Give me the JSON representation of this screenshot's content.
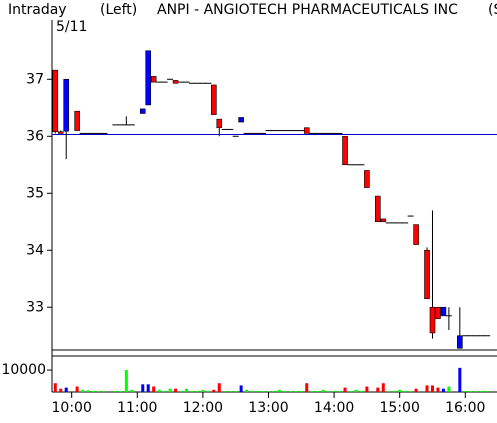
{
  "chart_data": {
    "type": "candlestick",
    "period": "Intraday",
    "axis_side": "(Left)",
    "title": "ANPI - ANGIOTECH PHARMACEUTICALS INC",
    "title_suffix": "(S",
    "date": "5/11",
    "x": [
      "09:45",
      "09:50",
      "09:55",
      "10:05",
      "10:10",
      "10:15",
      "10:20",
      "10:25",
      "10:30",
      "10:40",
      "10:45",
      "10:50",
      "10:55",
      "11:05",
      "11:10",
      "11:15",
      "11:20",
      "11:25",
      "11:30",
      "11:35",
      "11:40",
      "11:45",
      "11:50",
      "11:55",
      "12:00",
      "12:05",
      "12:10",
      "12:15",
      "12:20",
      "12:25",
      "12:30",
      "12:35",
      "12:40",
      "12:45",
      "12:50",
      "12:55",
      "13:00",
      "13:05",
      "13:10",
      "13:15",
      "13:20",
      "13:25",
      "13:30",
      "13:35",
      "13:40",
      "13:45",
      "13:50",
      "13:55",
      "14:00",
      "14:05",
      "14:10",
      "14:15",
      "14:20",
      "14:25",
      "14:30",
      "14:40",
      "14:45",
      "14:50",
      "14:55",
      "15:00",
      "15:05",
      "15:10",
      "15:15",
      "15:25",
      "15:30",
      "15:35",
      "15:40",
      "15:45",
      "15:55",
      "16:00",
      "16:05",
      "16:10",
      "16:15",
      "16:20"
    ],
    "open": [
      37.16,
      36.08,
      36.09,
      36.44,
      36.05,
      36.05,
      36.05,
      36.05,
      36.05,
      36.2,
      36.2,
      36.2,
      36.2,
      36.4,
      36.55,
      37.05,
      36.95,
      36.95,
      37.0,
      36.98,
      36.95,
      36.95,
      36.93,
      36.93,
      36.93,
      36.93,
      36.9,
      36.3,
      36.12,
      36.12,
      36.0,
      36.25,
      36.05,
      36.05,
      36.05,
      36.05,
      36.1,
      36.1,
      36.1,
      36.1,
      36.1,
      36.1,
      36.1,
      36.15,
      36.05,
      36.05,
      36.05,
      36.05,
      36.05,
      36.05,
      36.0,
      35.5,
      35.5,
      35.5,
      35.4,
      34.95,
      34.55,
      34.48,
      34.48,
      34.48,
      34.48,
      34.6,
      34.45,
      34.0,
      33.0,
      33.0,
      32.85,
      32.85,
      32.28,
      32.5,
      32.5,
      32.5,
      32.5,
      32.5
    ],
    "high": [
      37.16,
      36.1,
      37.0,
      36.44,
      36.05,
      36.05,
      36.05,
      36.05,
      36.05,
      36.2,
      36.2,
      36.35,
      36.2,
      36.48,
      37.5,
      37.05,
      36.95,
      36.95,
      37.0,
      36.98,
      36.95,
      36.95,
      36.93,
      36.93,
      36.93,
      36.93,
      36.9,
      36.3,
      36.12,
      36.12,
      36.0,
      36.33,
      36.05,
      36.05,
      36.05,
      36.05,
      36.1,
      36.1,
      36.1,
      36.1,
      36.1,
      36.1,
      36.1,
      36.15,
      36.05,
      36.05,
      36.05,
      36.05,
      36.05,
      36.05,
      36.0,
      35.5,
      35.5,
      35.5,
      35.4,
      34.95,
      34.55,
      34.48,
      34.48,
      34.48,
      34.48,
      34.6,
      34.45,
      34.05,
      34.7,
      33.0,
      33.0,
      33.0,
      33.0,
      32.5,
      32.5,
      32.5,
      32.5,
      32.5
    ],
    "low": [
      36.05,
      36.05,
      35.6,
      36.1,
      36.05,
      36.05,
      36.05,
      36.05,
      36.05,
      36.2,
      36.2,
      36.2,
      36.2,
      36.4,
      36.55,
      36.95,
      36.95,
      36.95,
      37.0,
      36.93,
      36.95,
      36.95,
      36.93,
      36.93,
      36.93,
      36.93,
      36.38,
      36.0,
      36.12,
      36.12,
      36.0,
      36.25,
      36.05,
      36.05,
      36.05,
      36.05,
      36.1,
      36.1,
      36.1,
      36.1,
      36.1,
      36.1,
      36.1,
      36.05,
      36.05,
      36.05,
      36.05,
      36.05,
      36.05,
      36.05,
      35.5,
      35.5,
      35.5,
      35.5,
      35.1,
      34.5,
      34.5,
      34.48,
      34.48,
      34.48,
      34.48,
      34.6,
      34.1,
      33.15,
      32.45,
      32.8,
      32.85,
      32.6,
      32.28,
      32.5,
      32.5,
      32.5,
      32.5,
      32.5
    ],
    "close": [
      36.08,
      36.05,
      37.0,
      36.1,
      36.05,
      36.05,
      36.05,
      36.05,
      36.05,
      36.2,
      36.2,
      36.2,
      36.2,
      36.48,
      37.5,
      36.95,
      36.95,
      36.95,
      37.0,
      36.93,
      36.95,
      36.95,
      36.93,
      36.93,
      36.93,
      36.93,
      36.38,
      36.15,
      36.12,
      36.12,
      36.0,
      36.33,
      36.05,
      36.05,
      36.05,
      36.05,
      36.1,
      36.1,
      36.1,
      36.1,
      36.1,
      36.1,
      36.1,
      36.05,
      36.05,
      36.05,
      36.05,
      36.05,
      36.05,
      36.05,
      35.5,
      35.5,
      35.5,
      35.5,
      35.1,
      34.5,
      34.5,
      34.48,
      34.48,
      34.48,
      34.48,
      34.6,
      34.1,
      33.15,
      32.55,
      32.8,
      33.0,
      32.85,
      32.5,
      32.5,
      32.5,
      32.5,
      32.5,
      32.5
    ],
    "volume": [
      4000,
      1500,
      2000,
      2500,
      1000,
      800,
      500,
      500,
      500,
      500,
      500,
      10000,
      1000,
      3500,
      3500,
      2500,
      1000,
      500,
      1500,
      1500,
      500,
      1500,
      500,
      500,
      1000,
      500,
      1000,
      4000,
      500,
      500,
      500,
      3000,
      1000,
      500,
      500,
      500,
      500,
      500,
      1000,
      500,
      500,
      500,
      500,
      4000,
      500,
      500,
      1000,
      500,
      500,
      500,
      2000,
      500,
      1000,
      500,
      2500,
      2000,
      4000,
      500,
      500,
      1000,
      500,
      500,
      1500,
      3000,
      3000,
      2000,
      1500,
      2500,
      11000,
      500,
      500,
      500,
      500,
      500
    ],
    "up_color": "#0000ff",
    "down_color": "#ff0000",
    "flat_color": "#00ff00",
    "reference_color": "#0000cc",
    "reference_line": 36.03,
    "xlim": [
      "09:42",
      "16:29"
    ],
    "xticks": [
      "10:00",
      "11:00",
      "12:00",
      "13:00",
      "14:00",
      "15:00",
      "16:00"
    ],
    "ylim": [
      32.25,
      38.04
    ],
    "yticks": [
      33,
      34,
      35,
      36,
      37
    ],
    "volume_lim": [
      0,
      16400
    ],
    "volume_ticks": [
      10000
    ]
  }
}
